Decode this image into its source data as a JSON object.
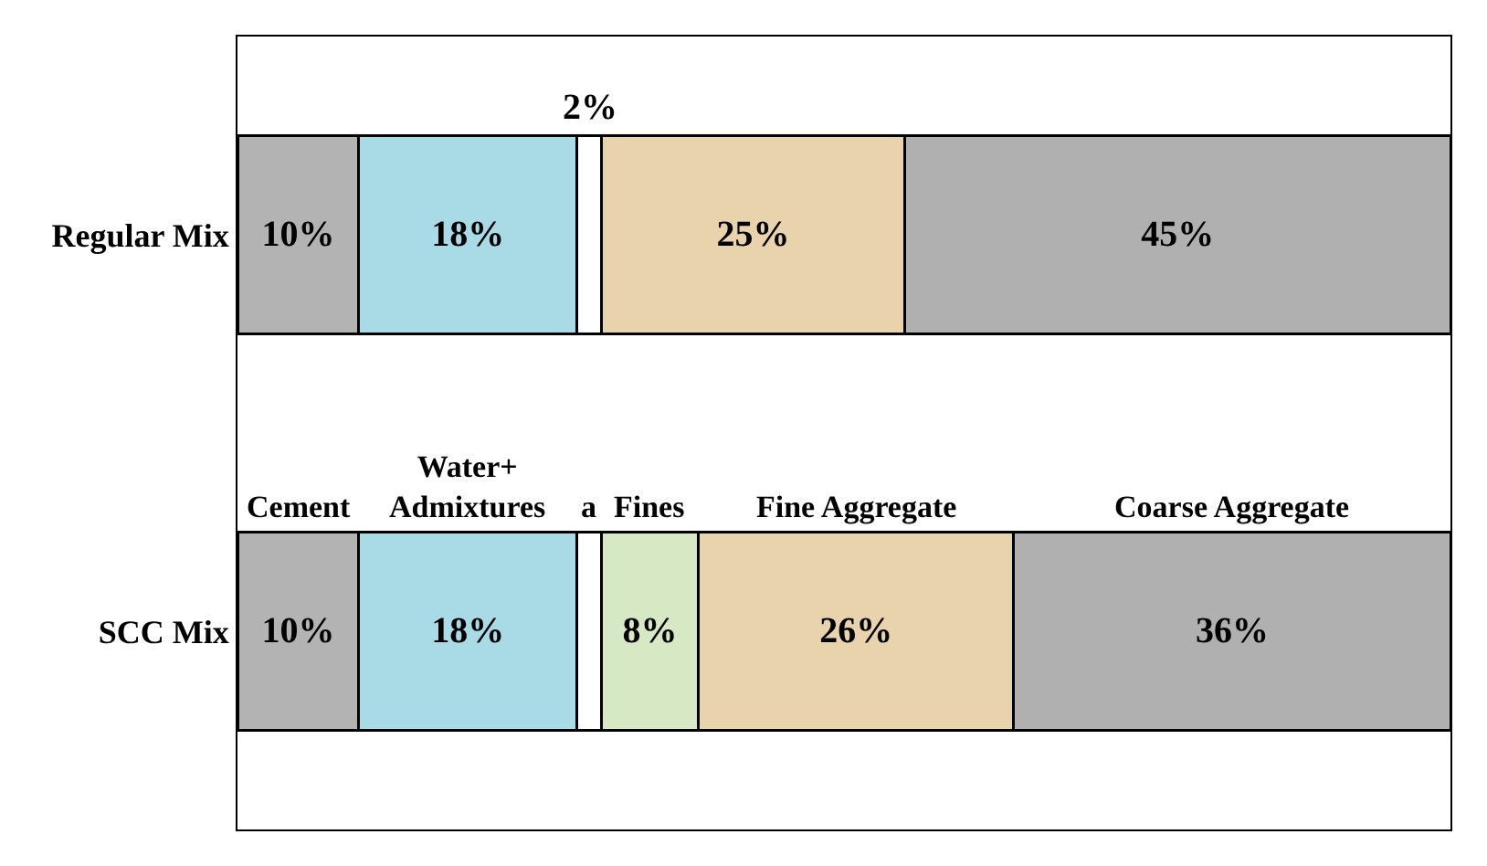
{
  "chart_data": {
    "type": "bar",
    "orientation": "horizontal",
    "stacked": true,
    "categories": [
      "Regular Mix",
      "SCC Mix"
    ],
    "series": [
      {
        "name": "Cement",
        "color": "#b3b3b3",
        "values": [
          10,
          10
        ],
        "value_labels": [
          "10%",
          "10%"
        ]
      },
      {
        "name": "Water+ Admixtures",
        "color": "#a8dbe6",
        "values": [
          18,
          18
        ],
        "value_labels": [
          "18%",
          "18%"
        ]
      },
      {
        "name": "a",
        "color": "#ffffff",
        "values": [
          2,
          2
        ],
        "value_labels": [
          "2%",
          null
        ]
      },
      {
        "name": "Fines",
        "color": "#d6e8c4",
        "values": [
          null,
          8
        ],
        "value_labels": [
          null,
          "8%"
        ]
      },
      {
        "name": "Fine Aggregate",
        "color": "#e8d3ad",
        "values": [
          25,
          26
        ],
        "value_labels": [
          "25%",
          "26%"
        ]
      },
      {
        "name": "Coarse Aggregate",
        "color": "#b0b0b0",
        "values": [
          45,
          36
        ],
        "value_labels": [
          "45%",
          "36%"
        ]
      }
    ],
    "xlim": [
      0,
      100
    ],
    "tick_labels": "y",
    "legend": false
  }
}
